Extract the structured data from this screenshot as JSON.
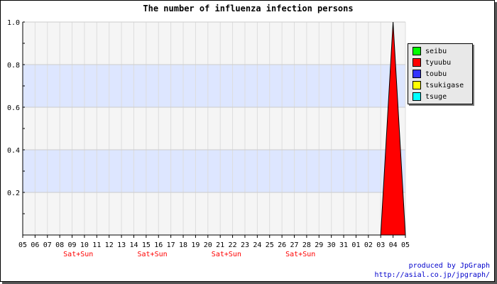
{
  "chart_data": {
    "type": "area",
    "title": "The number of influenza infection persons",
    "xlabel": "",
    "ylabel": "",
    "categories": [
      "05",
      "06",
      "07",
      "08",
      "09",
      "10",
      "11",
      "12",
      "13",
      "14",
      "15",
      "16",
      "17",
      "18",
      "19",
      "20",
      "21",
      "22",
      "23",
      "24",
      "25",
      "26",
      "27",
      "28",
      "29",
      "30",
      "31",
      "01",
      "02",
      "03",
      "04",
      "05"
    ],
    "weekend_markers": [
      {
        "after_category_index": 4,
        "label": "Sat+Sun"
      },
      {
        "after_category_index": 10,
        "label": "Sat+Sun"
      },
      {
        "after_category_index": 16,
        "label": "Sat+Sun"
      },
      {
        "after_category_index": 22,
        "label": "Sat+Sun"
      }
    ],
    "series": [
      {
        "name": "seibu",
        "color": "#00ff00",
        "values": [
          0,
          0,
          0,
          0,
          0,
          0,
          0,
          0,
          0,
          0,
          0,
          0,
          0,
          0,
          0,
          0,
          0,
          0,
          0,
          0,
          0,
          0,
          0,
          0,
          0,
          0,
          0,
          0,
          0,
          0,
          0,
          0
        ]
      },
      {
        "name": "tyuubu",
        "color": "#ff0000",
        "values": [
          0,
          0,
          0,
          0,
          0,
          0,
          0,
          0,
          0,
          0,
          0,
          0,
          0,
          0,
          0,
          0,
          0,
          0,
          0,
          0,
          0,
          0,
          0,
          0,
          0,
          0,
          0,
          0,
          0,
          0,
          1,
          0
        ]
      },
      {
        "name": "toubu",
        "color": "#3333ff",
        "values": [
          0,
          0,
          0,
          0,
          0,
          0,
          0,
          0,
          0,
          0,
          0,
          0,
          0,
          0,
          0,
          0,
          0,
          0,
          0,
          0,
          0,
          0,
          0,
          0,
          0,
          0,
          0,
          0,
          0,
          0,
          0,
          0
        ]
      },
      {
        "name": "tsukigase",
        "color": "#ffff00",
        "values": [
          0,
          0,
          0,
          0,
          0,
          0,
          0,
          0,
          0,
          0,
          0,
          0,
          0,
          0,
          0,
          0,
          0,
          0,
          0,
          0,
          0,
          0,
          0,
          0,
          0,
          0,
          0,
          0,
          0,
          0,
          0,
          0
        ]
      },
      {
        "name": "tsuge",
        "color": "#00ffff",
        "values": [
          0,
          0,
          0,
          0,
          0,
          0,
          0,
          0,
          0,
          0,
          0,
          0,
          0,
          0,
          0,
          0,
          0,
          0,
          0,
          0,
          0,
          0,
          0,
          0,
          0,
          0,
          0,
          0,
          0,
          0,
          0,
          0
        ]
      }
    ],
    "ylim": [
      0,
      1.0
    ],
    "yticks": [
      0.2,
      0.4,
      0.6,
      0.8,
      1.0
    ],
    "ytick_labels": [
      "0.2",
      "0.4",
      "0.6",
      "0.8",
      "1.0"
    ],
    "grid": true,
    "background_bands": [
      [
        0.2,
        0.4
      ],
      [
        0.6,
        0.8
      ]
    ],
    "band_color": "#dde6ff",
    "plot_bg": "#f5f5f5",
    "legend_position": "right"
  },
  "credits": {
    "line1": "produced by JpGraph",
    "line2": "http://asial.co.jp/jpgraph/"
  }
}
